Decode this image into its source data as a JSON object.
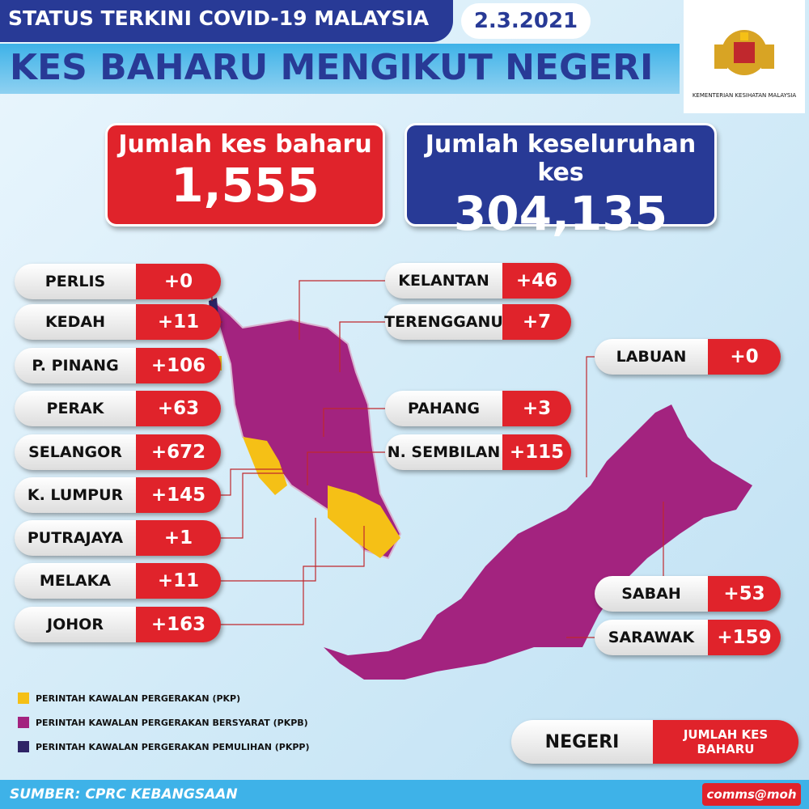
{
  "header": {
    "title": "STATUS TERKINI COVID-19 MALAYSIA",
    "date": "2.3.2021",
    "subtitle": "KES BAHARU MENGIKUT NEGERI",
    "logo_caption": "KEMENTERIAN KESIHATAN MALAYSIA"
  },
  "totals": [
    {
      "label": "Jumlah kes baharu",
      "value": "1,555",
      "color": "#e0232b"
    },
    {
      "label": "Jumlah keseluruhan kes",
      "value": "304,135",
      "color": "#283a96"
    }
  ],
  "states": [
    {
      "name": "PERLIS",
      "cases": "+0"
    },
    {
      "name": "KEDAH",
      "cases": "+11"
    },
    {
      "name": "P. PINANG",
      "cases": "+106"
    },
    {
      "name": "PERAK",
      "cases": "+63"
    },
    {
      "name": "SELANGOR",
      "cases": "+672"
    },
    {
      "name": "K. LUMPUR",
      "cases": "+145"
    },
    {
      "name": "PUTRAJAYA",
      "cases": "+1"
    },
    {
      "name": "MELAKA",
      "cases": "+11"
    },
    {
      "name": "JOHOR",
      "cases": "+163"
    },
    {
      "name": "KELANTAN",
      "cases": "+46"
    },
    {
      "name": "TERENGGANU",
      "cases": "+7"
    },
    {
      "name": "PAHANG",
      "cases": "+3"
    },
    {
      "name": "N. SEMBILAN",
      "cases": "+115"
    },
    {
      "name": "LABUAN",
      "cases": "+0"
    },
    {
      "name": "SABAH",
      "cases": "+53"
    },
    {
      "name": "SARAWAK",
      "cases": "+159"
    }
  ],
  "legend": [
    {
      "label": "PERINTAH KAWALAN PERGERAKAN (PKP)",
      "color": "#f5c016"
    },
    {
      "label": "PERINTAH KAWALAN PERGERAKAN BERSYARAT (PKPB)",
      "color": "#a3237f"
    },
    {
      "label": "PERINTAH KAWALAN PERGERAKAN PEMULIHAN (PKPP)",
      "color": "#2e2466"
    }
  ],
  "key": {
    "state": "NEGERI",
    "cases": "JUMLAH KES BAHARU"
  },
  "footer": {
    "source": "SUMBER: CPRC KEBANGSAAN",
    "handle": "comms@moh"
  }
}
